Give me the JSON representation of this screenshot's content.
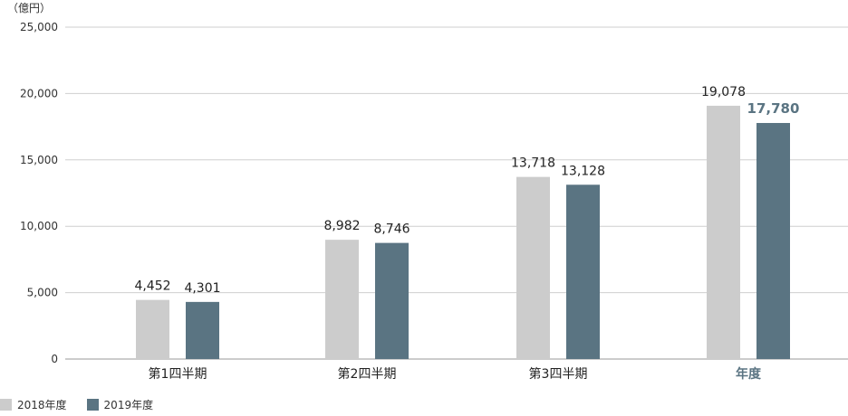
{
  "chart_data": {
    "type": "bar",
    "unit_label": "（億円）",
    "categories": [
      "第1四半期",
      "第2四半期",
      "第3四半期",
      "年度"
    ],
    "series": [
      {
        "name": "2018年度",
        "values": [
          4452,
          8982,
          13718,
          19078
        ],
        "color": "#cccccc"
      },
      {
        "name": "2019年度",
        "values": [
          4301,
          8746,
          13128,
          17780
        ],
        "color": "#5a7482"
      }
    ],
    "value_labels": [
      [
        "4,452",
        "8,982",
        "13,718",
        "19,078"
      ],
      [
        "4,301",
        "8,746",
        "13,128",
        "17,780"
      ]
    ],
    "ylim": [
      0,
      25000
    ],
    "yticks": [
      0,
      5000,
      10000,
      15000,
      20000,
      25000
    ],
    "ytick_labels": [
      "0",
      "5,000",
      "10,000",
      "15,000",
      "20,000",
      "25,000"
    ],
    "highlight_category": "年度",
    "highlight_color": "#5a7482",
    "grid": true,
    "legend_position": "bottom-left"
  }
}
